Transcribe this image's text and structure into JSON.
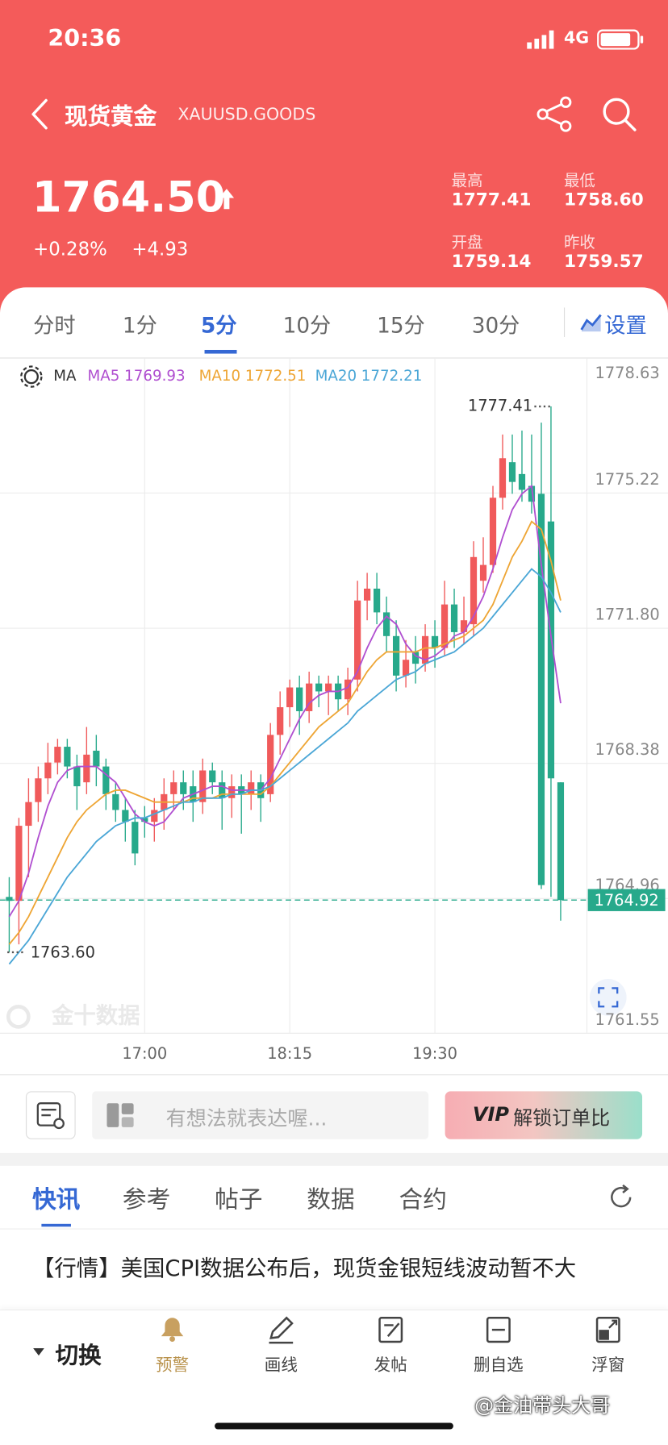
{
  "status_bar": {
    "time": "20:36",
    "network": "4G"
  },
  "header": {
    "title": "现货黄金",
    "symbol": "XAUUSD.GOODS"
  },
  "quote": {
    "price": "1764.50",
    "change_pct": "+0.28%",
    "change": "+4.93",
    "stats": [
      {
        "label": "最高",
        "value": "1777.41"
      },
      {
        "label": "最低",
        "value": "1758.60"
      },
      {
        "label": "开盘",
        "value": "1759.14"
      },
      {
        "label": "昨收",
        "value": "1759.57"
      }
    ]
  },
  "period_tabs": {
    "items": [
      "分时",
      "1分",
      "5分",
      "10分",
      "15分",
      "30分"
    ],
    "active": 2,
    "settings": "设置"
  },
  "chart_data": {
    "type": "candlestick",
    "indicator": "MA",
    "up_color": "#f05a5b",
    "down_color": "#27a98b",
    "categories": [
      null,
      null,
      null,
      null,
      null,
      null,
      null,
      null,
      null,
      null,
      null,
      null,
      null,
      null,
      "17:00",
      null,
      null,
      null,
      null,
      null,
      null,
      null,
      null,
      null,
      null,
      null,
      null,
      null,
      null,
      "18:15",
      null,
      null,
      null,
      null,
      null,
      null,
      null,
      null,
      null,
      null,
      null,
      null,
      null,
      null,
      "19:30",
      null,
      null,
      null,
      null,
      null,
      null,
      null,
      null,
      null,
      null,
      null,
      null,
      null
    ],
    "open": [
      1765.0,
      1764.9,
      1766.8,
      1767.4,
      1768.0,
      1768.4,
      1768.8,
      1768.3,
      1767.9,
      1768.7,
      1768.3,
      1767.6,
      1767.2,
      1766.9,
      1767.0,
      1766.9,
      1767.2,
      1767.6,
      1767.9,
      1767.8,
      1767.4,
      1768.2,
      1767.9,
      1767.5,
      1767.8,
      1767.6,
      1767.9,
      1767.6,
      1769.1,
      1769.8,
      1770.3,
      1769.7,
      1770.4,
      1770.2,
      1770.4,
      1770.0,
      1770.5,
      1772.5,
      1772.8,
      1772.2,
      1771.6,
      1770.6,
      1771.2,
      1770.9,
      1771.6,
      1771.3,
      1772.4,
      1771.7,
      1771.9,
      1773.0,
      1773.4,
      1775.1,
      1776.0,
      1775.7,
      1775.4,
      1775.2,
      1774.5,
      1767.9
    ],
    "high": [
      1765.5,
      1767.0,
      1768.0,
      1768.3,
      1768.9,
      1769.0,
      1769.0,
      1768.6,
      1769.3,
      1769.1,
      1768.5,
      1767.9,
      1767.5,
      1767.2,
      1767.3,
      1767.5,
      1768.0,
      1768.2,
      1768.2,
      1768.2,
      1768.5,
      1768.4,
      1768.2,
      1768.1,
      1768.1,
      1768.2,
      1768.1,
      1769.4,
      1770.2,
      1770.5,
      1770.6,
      1770.7,
      1770.6,
      1770.6,
      1770.6,
      1770.8,
      1773.0,
      1773.2,
      1773.2,
      1772.6,
      1772.0,
      1771.5,
      1771.6,
      1771.9,
      1772.0,
      1773.0,
      1772.8,
      1772.6,
      1774.0,
      1774.1,
      1775.4,
      1776.7,
      1776.7,
      1776.8,
      1776.7,
      1777.0,
      1777.41,
      1767.9
    ],
    "low": [
      1763.6,
      1763.8,
      1765.5,
      1766.9,
      1767.6,
      1768.1,
      1768.0,
      1767.2,
      1767.6,
      1767.8,
      1767.2,
      1766.9,
      1766.4,
      1765.8,
      1766.5,
      1766.4,
      1766.7,
      1767.2,
      1767.2,
      1766.9,
      1767.1,
      1767.6,
      1766.7,
      1767.0,
      1766.6,
      1767.2,
      1766.9,
      1767.4,
      1768.6,
      1769.3,
      1769.1,
      1769.4,
      1769.8,
      1769.6,
      1769.7,
      1769.6,
      1770.2,
      1772.0,
      1771.9,
      1771.2,
      1770.2,
      1770.3,
      1770.4,
      1770.7,
      1770.8,
      1771.1,
      1771.3,
      1771.4,
      1771.6,
      1772.7,
      1773.2,
      1774.8,
      1775.2,
      1775.0,
      1774.7,
      1765.2,
      1765.0,
      1764.4
    ],
    "close": [
      1764.9,
      1766.8,
      1767.4,
      1768.0,
      1768.4,
      1768.8,
      1768.3,
      1767.8,
      1768.6,
      1768.3,
      1767.6,
      1767.2,
      1766.9,
      1766.1,
      1766.9,
      1767.2,
      1767.6,
      1767.9,
      1767.6,
      1767.4,
      1768.2,
      1767.9,
      1767.5,
      1767.8,
      1767.6,
      1767.9,
      1767.5,
      1769.1,
      1769.8,
      1770.3,
      1769.7,
      1770.4,
      1770.2,
      1770.4,
      1770.0,
      1770.5,
      1772.5,
      1772.8,
      1772.2,
      1771.6,
      1770.6,
      1771.0,
      1770.9,
      1771.6,
      1771.3,
      1772.4,
      1771.7,
      1772.0,
      1773.6,
      1773.4,
      1775.1,
      1776.1,
      1775.5,
      1775.3,
      1775.0,
      1765.3,
      1768.0,
      1764.92
    ],
    "series": [
      {
        "name": "MA5",
        "color": "#b04fd0",
        "legend_value": 1769.93,
        "values": [
          1764.5,
          1764.9,
          1765.6,
          1766.5,
          1767.3,
          1767.9,
          1768.2,
          1768.3,
          1768.3,
          1768.3,
          1768.1,
          1767.9,
          1767.5,
          1767.1,
          1766.9,
          1766.8,
          1766.9,
          1767.2,
          1767.5,
          1767.6,
          1767.7,
          1767.8,
          1767.8,
          1767.7,
          1767.7,
          1767.7,
          1767.7,
          1768.0,
          1768.5,
          1769.0,
          1769.5,
          1769.9,
          1770.1,
          1770.2,
          1770.2,
          1770.3,
          1770.7,
          1771.3,
          1771.8,
          1772.1,
          1771.9,
          1771.4,
          1771.1,
          1771.0,
          1771.1,
          1771.3,
          1771.6,
          1771.7,
          1772.1,
          1772.6,
          1773.3,
          1774.1,
          1774.8,
          1775.2,
          1775.4,
          1773.4,
          1771.6,
          1769.9
        ]
      },
      {
        "name": "MA10",
        "color": "#eea534",
        "legend_value": 1772.51,
        "values": [
          1763.8,
          1764.1,
          1764.5,
          1765.0,
          1765.5,
          1766.0,
          1766.5,
          1766.9,
          1767.2,
          1767.4,
          1767.6,
          1767.7,
          1767.7,
          1767.6,
          1767.5,
          1767.4,
          1767.4,
          1767.4,
          1767.4,
          1767.5,
          1767.5,
          1767.5,
          1767.6,
          1767.6,
          1767.6,
          1767.6,
          1767.6,
          1767.8,
          1768.1,
          1768.4,
          1768.7,
          1769.0,
          1769.3,
          1769.5,
          1769.7,
          1769.9,
          1770.3,
          1770.7,
          1771.0,
          1771.2,
          1771.2,
          1771.2,
          1771.2,
          1771.3,
          1771.3,
          1771.4,
          1771.5,
          1771.6,
          1771.8,
          1772.0,
          1772.4,
          1773.0,
          1773.6,
          1774.0,
          1774.5,
          1774.3,
          1773.5,
          1772.5
        ]
      },
      {
        "name": "MA20",
        "color": "#4aa6d6",
        "legend_value": 1772.21,
        "values": [
          1763.3,
          1763.6,
          1763.9,
          1764.3,
          1764.7,
          1765.1,
          1765.5,
          1765.8,
          1766.1,
          1766.4,
          1766.6,
          1766.8,
          1766.9,
          1767.0,
          1767.0,
          1767.1,
          1767.2,
          1767.3,
          1767.4,
          1767.4,
          1767.5,
          1767.5,
          1767.5,
          1767.6,
          1767.6,
          1767.7,
          1767.7,
          1767.8,
          1768.0,
          1768.2,
          1768.4,
          1768.6,
          1768.8,
          1769.0,
          1769.2,
          1769.4,
          1769.7,
          1769.9,
          1770.1,
          1770.3,
          1770.5,
          1770.6,
          1770.7,
          1770.9,
          1771.0,
          1771.1,
          1771.2,
          1771.4,
          1771.6,
          1771.8,
          1772.1,
          1772.4,
          1772.7,
          1773.0,
          1773.3,
          1773.1,
          1772.7,
          1772.2
        ]
      }
    ],
    "ylim": [
      1761.55,
      1778.63
    ],
    "yticks": [
      1761.55,
      1764.96,
      1768.38,
      {
        "value": 1771.8,
        "label": "1771.80"
      },
      1775.22,
      1778.63
    ],
    "grid": true,
    "high_mark": 1777.41,
    "low_mark": {
      "value": 1763.6,
      "label": "1763.60"
    },
    "current_price": 1764.92
  },
  "chart_watermark": "金十数据",
  "comment_bar": {
    "placeholder": "有想法就表达喔...",
    "vip_badge": "VIP",
    "vip_button": "解锁订单比"
  },
  "news_tabs": {
    "items": [
      "快讯",
      "参考",
      "帖子",
      "数据",
      "合约"
    ],
    "active": 0
  },
  "news": {
    "items": [
      "【行情】美国CPI数据公布后，现货金银短线波动暂不大"
    ]
  },
  "bottom_nav": {
    "switch": "切换",
    "items": [
      "预警",
      "画线",
      "发帖",
      "删自选",
      "浮窗"
    ]
  },
  "watermark": "@金油带头大哥"
}
